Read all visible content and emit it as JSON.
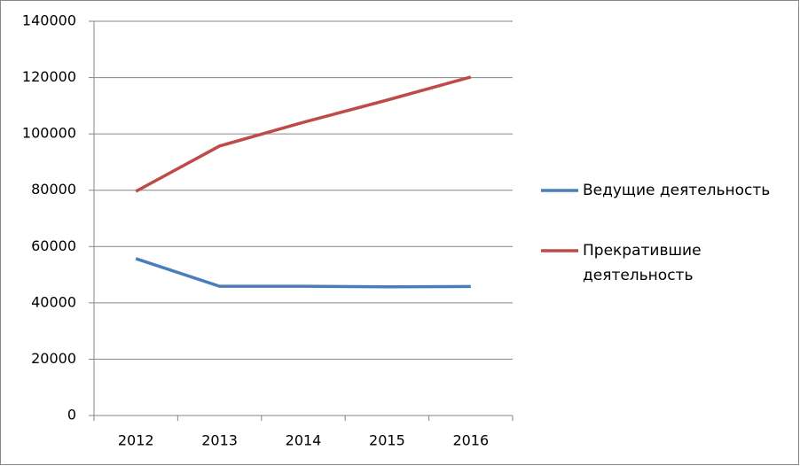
{
  "chart_data": {
    "type": "line",
    "categories": [
      "2012",
      "2013",
      "2014",
      "2015",
      "2016"
    ],
    "series": [
      {
        "name": "Ведущие деятельность",
        "color": "#4a7ebb",
        "values": [
          55700,
          45900,
          45900,
          45700,
          45800
        ]
      },
      {
        "name": "Прекратившие деятельность",
        "color": "#be4b48",
        "values": [
          79600,
          95700,
          104100,
          112000,
          120200
        ]
      }
    ],
    "ylim": [
      0,
      140000
    ],
    "yticks": [
      0,
      20000,
      40000,
      60000,
      80000,
      100000,
      120000,
      140000
    ],
    "grid": true,
    "legend": "right"
  }
}
